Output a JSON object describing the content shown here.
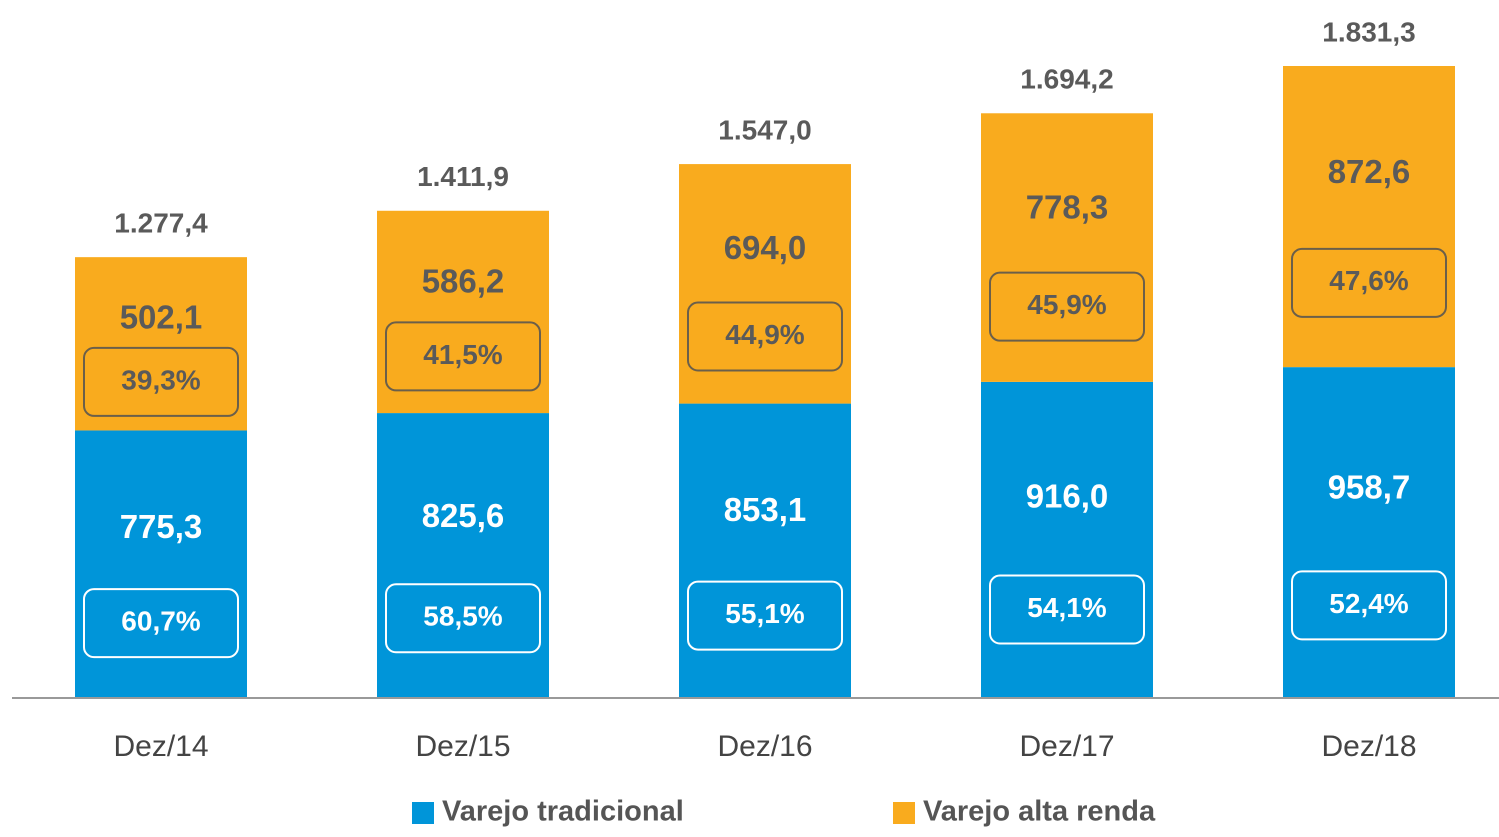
{
  "chart_data": {
    "type": "stacked-bar",
    "categories": [
      "Dez/14",
      "Dez/15",
      "Dez/16",
      "Dez/17",
      "Dez/18"
    ],
    "series": [
      {
        "name": "Varejo tradicional",
        "color": "#0095d9",
        "values": [
          775.3,
          825.6,
          853.1,
          916.0,
          958.7
        ],
        "value_labels": [
          "775,3",
          "825,6",
          "853,1",
          "916,0",
          "958,7"
        ],
        "percent": [
          60.7,
          58.5,
          55.1,
          54.1,
          52.4
        ],
        "percent_labels": [
          "60,7%",
          "58,5%",
          "55,1%",
          "54,1%",
          "52,4%"
        ]
      },
      {
        "name": "Varejo alta renda",
        "color": "#f9ab1e",
        "values": [
          502.1,
          586.2,
          694.0,
          778.3,
          872.6
        ],
        "value_labels": [
          "502,1",
          "586,2",
          "694,0",
          "778,3",
          "872,6"
        ],
        "percent": [
          39.3,
          41.5,
          44.9,
          45.9,
          47.6
        ],
        "percent_labels": [
          "39,3%",
          "41,5%",
          "44,9%",
          "45,9%",
          "47,6%"
        ]
      }
    ],
    "totals": [
      1277.4,
      1411.9,
      1547.0,
      1694.2,
      1831.3
    ],
    "total_labels": [
      "1.277,4",
      "1.411,9",
      "1.547,0",
      "1.694,2",
      "1.831,3"
    ]
  }
}
